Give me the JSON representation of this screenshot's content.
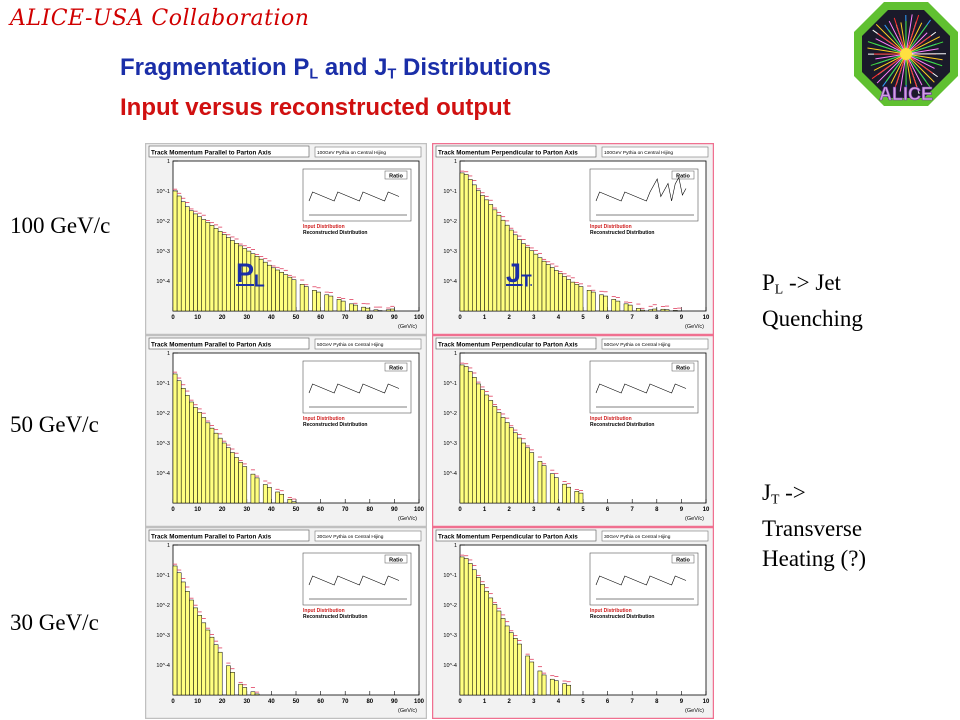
{
  "collaboration": "ALICE-USA Collaboration",
  "title_line1": "Fragmentation P",
  "title_line1_sub1": "L",
  "title_line1_mid": " and J",
  "title_line1_sub2": "T",
  "title_line1_end": " Distributions",
  "title_line2": "Input versus reconstructed output",
  "logo_text": "ALICE",
  "row_labels": [
    "100 GeV/c",
    "50 GeV/c",
    "30 GeV/c"
  ],
  "pl_label": {
    "main": "P",
    "sub": "L"
  },
  "jt_label": {
    "main": "J",
    "sub": "T"
  },
  "note1": {
    "main": "P",
    "sub": "L",
    "rest1": " -> Jet",
    "rest2": "Quenching"
  },
  "note2": {
    "main": "J",
    "sub": "T",
    "rest1": " ->",
    "rest2": "Transverse",
    "rest3": "Heating (?)"
  },
  "colors": {
    "collab": "#d00000",
    "title_blue": "#1a2ea8",
    "title_red": "#d01010",
    "hist_fill": "#ffff80",
    "recon_line": "#e04060",
    "frame_pink": "#f07090"
  },
  "chart_data": [
    {
      "type": "bar",
      "panel": "PL-100",
      "title": "Track Momentum Parallel to Parton Axis",
      "tag": "100GeV Pythia on Central Hijing",
      "xlabel": "(GeV/c)",
      "x_ticks": [
        "0",
        "10",
        "20",
        "30",
        "40",
        "50",
        "60",
        "70",
        "80",
        "90",
        "100"
      ],
      "y_ticks": [
        "1",
        "10^-1",
        "10^-2",
        "10^-3",
        "10^-4"
      ],
      "inset_title": "Ratio",
      "legend": [
        "Input Distribution",
        "Reconstructed Distribution"
      ],
      "xlim": [
        0,
        100
      ],
      "log_decades": 5,
      "xmax_data": 100,
      "values": [
        [
          1,
          0.1
        ],
        [
          3,
          0.06
        ],
        [
          5,
          0.035
        ],
        [
          8,
          0.02
        ],
        [
          12,
          0.012
        ],
        [
          16,
          0.007
        ],
        [
          20,
          0.004
        ],
        [
          25,
          0.002
        ],
        [
          30,
          0.0011
        ],
        [
          35,
          0.0006
        ],
        [
          40,
          0.0003
        ],
        [
          45,
          0.00018
        ],
        [
          50,
          0.0001
        ],
        [
          55,
          6e-05
        ],
        [
          60,
          4e-05
        ],
        [
          65,
          3e-05
        ],
        [
          70,
          2e-05
        ],
        [
          75,
          1.5e-05
        ],
        [
          80,
          1.2e-05
        ],
        [
          85,
          1e-05
        ],
        [
          90,
          1.2e-05
        ]
      ]
    },
    {
      "type": "bar",
      "panel": "JT-100",
      "title": "Track Momentum Perpendicular to Parton Axis",
      "tag": "100GeV Pythia on Central Hijing",
      "xlabel": "(GeV/c)",
      "x_ticks": [
        "0",
        "1",
        "2",
        "3",
        "4",
        "5",
        "6",
        "7",
        "8",
        "9",
        "10"
      ],
      "y_ticks": [
        "1",
        "10^-1",
        "10^-2",
        "10^-3",
        "10^-4"
      ],
      "inset_title": "Ratio",
      "legend": [
        "Input Distribution",
        "Reconstructed Distribution"
      ],
      "xlim": [
        0,
        10
      ],
      "log_decades": 5,
      "xmax_data": 10,
      "values": [
        [
          0.2,
          0.4
        ],
        [
          0.5,
          0.2
        ],
        [
          0.8,
          0.09
        ],
        [
          1.2,
          0.04
        ],
        [
          1.6,
          0.015
        ],
        [
          2,
          0.006
        ],
        [
          2.5,
          0.002
        ],
        [
          3,
          0.0009
        ],
        [
          3.5,
          0.0004
        ],
        [
          4,
          0.0002
        ],
        [
          4.5,
          0.0001
        ],
        [
          5,
          6e-05
        ],
        [
          5.5,
          4e-05
        ],
        [
          6,
          3e-05
        ],
        [
          6.5,
          2e-05
        ],
        [
          7,
          1.5e-05
        ],
        [
          7.5,
          1e-05
        ],
        [
          8,
          1.2e-05
        ],
        [
          9,
          1e-05
        ]
      ]
    },
    {
      "type": "bar",
      "panel": "PL-50",
      "title": "Track Momentum Parallel to Parton Axis",
      "tag": "50GeV Pythia on Central Hijing",
      "xlabel": "(GeV/c)",
      "x_ticks": [
        "0",
        "10",
        "20",
        "30",
        "40",
        "50",
        "60",
        "70",
        "80",
        "90",
        "100"
      ],
      "y_ticks": [
        "1",
        "10^-1",
        "10^-2",
        "10^-3",
        "10^-4"
      ],
      "inset_title": "Ratio",
      "legend": [
        "Input Distribution",
        "Reconstructed Distribution"
      ],
      "xlim": [
        0,
        100
      ],
      "log_decades": 5,
      "xmax_data": 100,
      "values": [
        [
          1,
          0.2
        ],
        [
          3,
          0.1
        ],
        [
          5,
          0.05
        ],
        [
          8,
          0.02
        ],
        [
          12,
          0.008
        ],
        [
          16,
          0.003
        ],
        [
          20,
          0.0012
        ],
        [
          24,
          0.0005
        ],
        [
          28,
          0.0002
        ],
        [
          32,
          0.0001
        ],
        [
          36,
          5e-05
        ],
        [
          40,
          3e-05
        ],
        [
          44,
          2e-05
        ],
        [
          50,
          1e-05
        ]
      ]
    },
    {
      "type": "bar",
      "panel": "JT-50",
      "title": "Track Momentum Perpendicular to Parton Axis",
      "tag": "50GeV Pythia on Central Hijing",
      "xlabel": "(GeV/c)",
      "x_ticks": [
        "0",
        "1",
        "2",
        "3",
        "4",
        "5",
        "6",
        "7",
        "8",
        "9",
        "10"
      ],
      "y_ticks": [
        "1",
        "10^-1",
        "10^-2",
        "10^-3",
        "10^-4"
      ],
      "inset_title": "Ratio",
      "legend": [
        "Input Distribution",
        "Reconstructed Distribution"
      ],
      "xlim": [
        0,
        10
      ],
      "log_decades": 5,
      "xmax_data": 10,
      "values": [
        [
          0.2,
          0.4
        ],
        [
          0.5,
          0.2
        ],
        [
          0.8,
          0.08
        ],
        [
          1.2,
          0.03
        ],
        [
          1.6,
          0.01
        ],
        [
          2,
          0.004
        ],
        [
          2.5,
          0.0012
        ],
        [
          3,
          0.0004
        ],
        [
          3.5,
          0.00015
        ],
        [
          4,
          6e-05
        ],
        [
          4.5,
          3e-05
        ],
        [
          5,
          2e-05
        ]
      ]
    },
    {
      "type": "bar",
      "panel": "PL-30",
      "title": "Track Momentum Parallel to Parton Axis",
      "tag": "30GeV Pythia on Central Hijing",
      "xlabel": "(GeV/c)",
      "x_ticks": [
        "0",
        "10",
        "20",
        "30",
        "40",
        "50",
        "60",
        "70",
        "80",
        "90",
        "100"
      ],
      "y_ticks": [
        "1",
        "10^-1",
        "10^-2",
        "10^-3",
        "10^-4"
      ],
      "inset_title": "Ratio",
      "legend": [
        "Input Distribution",
        "Reconstructed Distribution"
      ],
      "xlim": [
        0,
        100
      ],
      "log_decades": 5,
      "xmax_data": 100,
      "values": [
        [
          1,
          0.2
        ],
        [
          3,
          0.1
        ],
        [
          5,
          0.04
        ],
        [
          8,
          0.012
        ],
        [
          12,
          0.003
        ],
        [
          16,
          0.0008
        ],
        [
          20,
          0.0002
        ],
        [
          24,
          6e-05
        ],
        [
          28,
          2e-05
        ],
        [
          35,
          1e-05
        ]
      ]
    },
    {
      "type": "bar",
      "panel": "JT-30",
      "title": "Track Momentum Perpendicular to Parton Axis",
      "tag": "30GeV Pythia on Central Hijing",
      "xlabel": "(GeV/c)",
      "x_ticks": [
        "0",
        "1",
        "2",
        "3",
        "4",
        "5",
        "6",
        "7",
        "8",
        "9",
        "10"
      ],
      "y_ticks": [
        "1",
        "10^-1",
        "10^-2",
        "10^-3",
        "10^-4"
      ],
      "inset_title": "Ratio",
      "legend": [
        "Input Distribution",
        "Reconstructed Distribution"
      ],
      "xlim": [
        0,
        10
      ],
      "log_decades": 5,
      "xmax_data": 10,
      "values": [
        [
          0.2,
          0.4
        ],
        [
          0.5,
          0.2
        ],
        [
          0.8,
          0.07
        ],
        [
          1.2,
          0.02
        ],
        [
          1.6,
          0.006
        ],
        [
          2,
          0.0015
        ],
        [
          2.5,
          0.0004
        ],
        [
          3,
          0.0001
        ],
        [
          3.5,
          4e-05
        ],
        [
          4.5,
          2e-05
        ]
      ]
    }
  ]
}
